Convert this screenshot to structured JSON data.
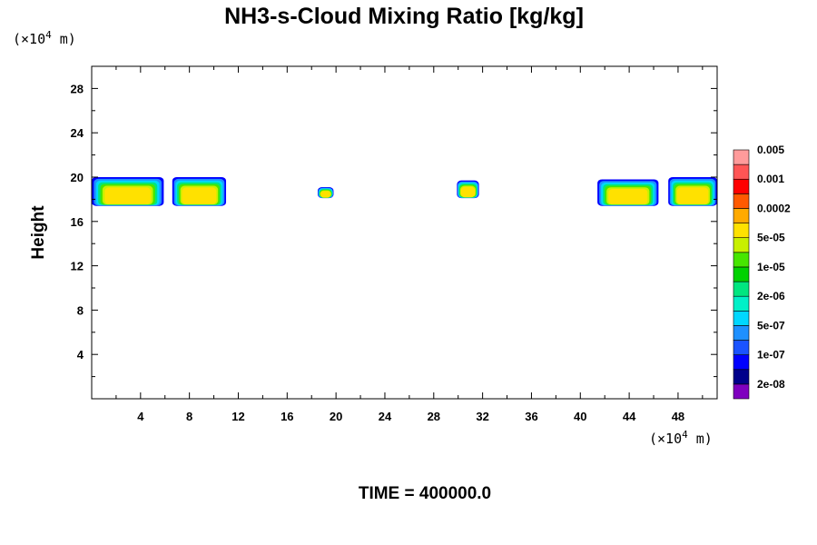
{
  "chart_data": {
    "type": "contour",
    "title": "NH3-s-Cloud Mixing Ratio [kg/kg]",
    "xlabel": "",
    "ylabel": "Height",
    "x_unit_prefix": "(×10",
    "x_unit_exp": "4",
    "x_unit_suffix": " m)",
    "y_unit_prefix": "(×10",
    "y_unit_exp": "4",
    "y_unit_suffix": " m)",
    "xlim": [
      0,
      51.2
    ],
    "ylim": [
      0,
      30
    ],
    "x_ticks": [
      4,
      8,
      12,
      16,
      20,
      24,
      28,
      32,
      36,
      40,
      44,
      48
    ],
    "y_ticks": [
      4,
      8,
      12,
      16,
      20,
      24,
      28
    ],
    "footer": "TIME = 400000.0",
    "colorbar": {
      "colors": [
        "#7f00bf",
        "#00008b",
        "#0000ff",
        "#1a53ff",
        "#1e90ff",
        "#00d7ff",
        "#00f0c8",
        "#00e680",
        "#00d200",
        "#46e600",
        "#c8f000",
        "#ffe100",
        "#ffaa00",
        "#ff5a00",
        "#ff0000",
        "#ff5555",
        "#ff9b9b"
      ],
      "labels": [
        "2e-08",
        "1e-07",
        "5e-07",
        "2e-06",
        "1e-05",
        "5e-05",
        "0.0002",
        "0.001",
        "0.005"
      ]
    },
    "clouds": [
      {
        "x0": 0.0,
        "x1": 5.9,
        "y0": 17.4,
        "y1": 20.0
      },
      {
        "x0": 6.6,
        "x1": 11.0,
        "y0": 17.4,
        "y1": 20.0
      },
      {
        "x0": 18.5,
        "x1": 19.8,
        "y0": 18.1,
        "y1": 19.1
      },
      {
        "x0": 29.9,
        "x1": 31.7,
        "y0": 18.1,
        "y1": 19.7
      },
      {
        "x0": 41.4,
        "x1": 46.4,
        "y0": 17.4,
        "y1": 19.8
      },
      {
        "x0": 47.2,
        "x1": 51.2,
        "y0": 17.4,
        "y1": 20.0
      }
    ]
  }
}
